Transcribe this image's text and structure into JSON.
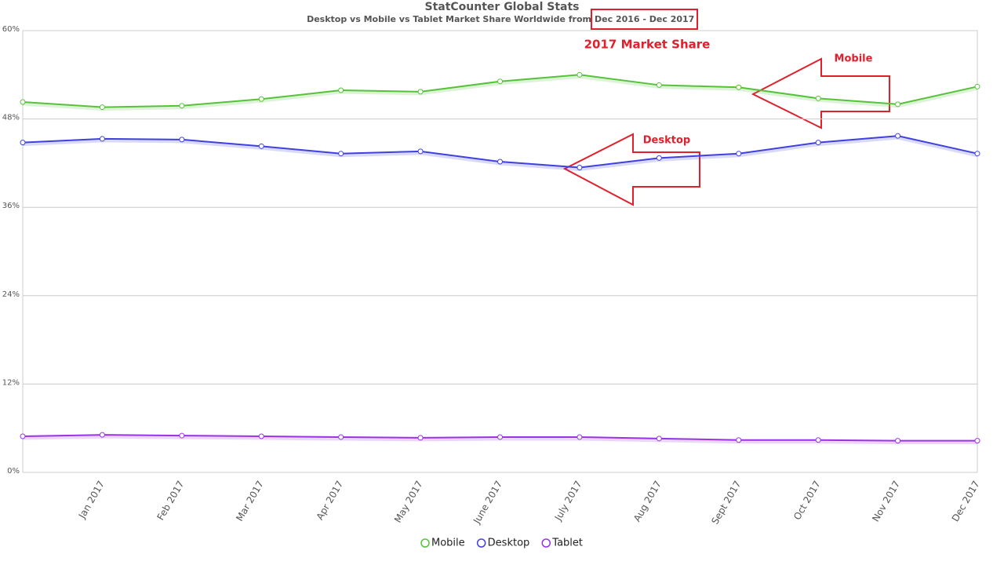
{
  "chart_data": {
    "type": "line",
    "title": "StatCounter Global Stats",
    "subtitle": "Desktop vs Mobile vs Tablet Market Share Worldwide from",
    "subtitle_highlight": "Dec 2016 - Dec 2017",
    "annotations": [
      "2017 Market Share",
      "Mobile",
      "Desktop"
    ],
    "categories": [
      null,
      "Jan 2017",
      "Feb 2017",
      "Mar 2017",
      "Apr 2017",
      "May 2017",
      "June 2017",
      "July 2017",
      "Aug 2017",
      "Sept 2017",
      "Oct 2017",
      "Nov 2017",
      "Dec 2017"
    ],
    "series": [
      {
        "name": "Mobile",
        "color": "#56c23a",
        "values": [
          50.3,
          49.6,
          49.8,
          50.7,
          51.9,
          51.7,
          53.1,
          54.0,
          52.6,
          52.3,
          50.8,
          50.0,
          52.4
        ]
      },
      {
        "name": "Desktop",
        "color": "#4040e0",
        "values": [
          44.8,
          45.3,
          45.2,
          44.3,
          43.3,
          43.6,
          42.2,
          41.4,
          42.7,
          43.3,
          44.8,
          45.7,
          43.3
        ]
      },
      {
        "name": "Tablet",
        "color": "#9a32e6",
        "values": [
          4.9,
          5.1,
          5.0,
          4.9,
          4.8,
          4.7,
          4.8,
          4.8,
          4.6,
          4.4,
          4.4,
          4.3,
          4.3
        ]
      }
    ],
    "ylim": [
      0,
      60
    ],
    "yticks": [
      {
        "value": 0,
        "label": "0%"
      },
      {
        "value": 12,
        "label": "12%"
      },
      {
        "value": 24,
        "label": "24%"
      },
      {
        "value": 36,
        "label": "36%"
      },
      {
        "value": 48,
        "label": "48%"
      },
      {
        "value": 60,
        "label": "60%"
      }
    ],
    "grid": true,
    "legend": "bottom"
  }
}
